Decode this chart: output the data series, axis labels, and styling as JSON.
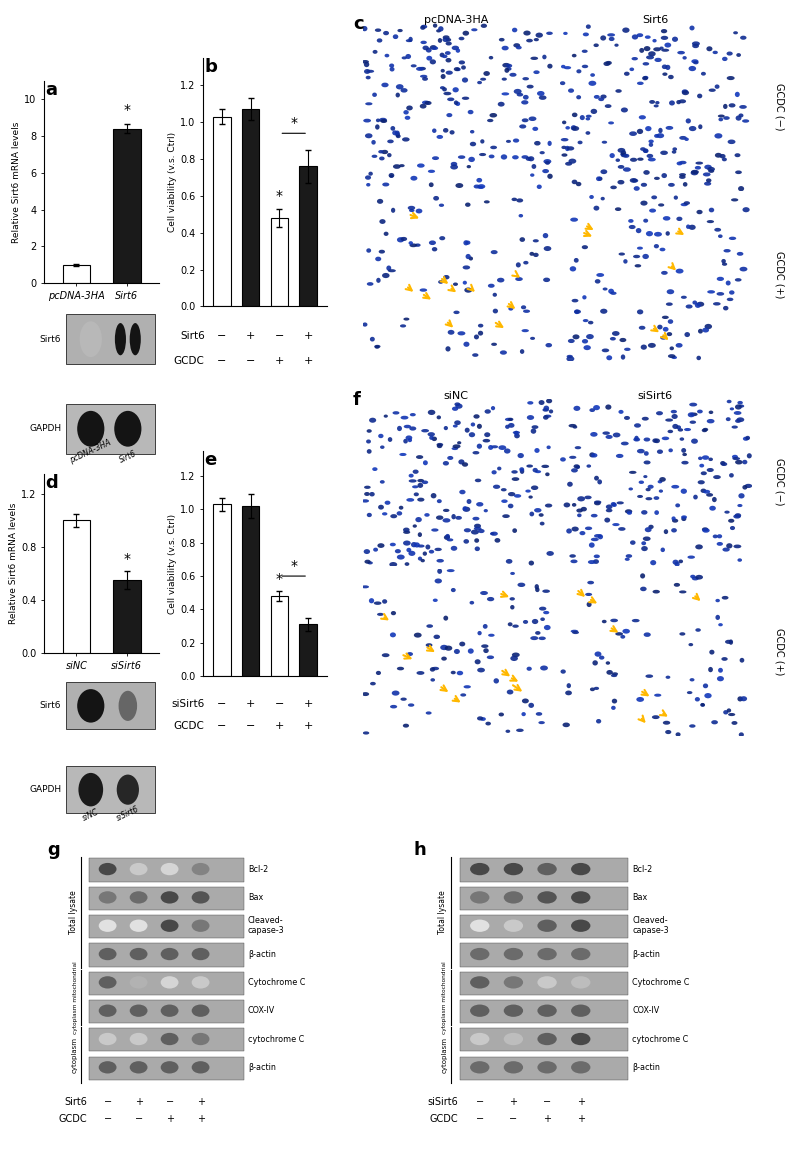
{
  "panel_a": {
    "bar_values": [
      1.0,
      8.4
    ],
    "bar_errors": [
      0.05,
      0.25
    ],
    "bar_colors": [
      "white",
      "#1a1a1a"
    ],
    "bar_edgecolors": [
      "black",
      "black"
    ],
    "categories": [
      "pcDNA-3HA",
      "Sirt6"
    ],
    "ylabel": "Relative Sirt6 mRNA levels",
    "ylim": [
      0,
      11
    ],
    "yticks": [
      0,
      2,
      4,
      6,
      8,
      10
    ],
    "significance": "*",
    "label": "a"
  },
  "panel_b": {
    "bar_values": [
      1.03,
      1.07,
      0.48,
      0.76
    ],
    "bar_errors": [
      0.04,
      0.06,
      0.05,
      0.09
    ],
    "bar_colors": [
      "white",
      "#1a1a1a",
      "white",
      "#1a1a1a"
    ],
    "bar_edgecolors": [
      "black",
      "black",
      "black",
      "black"
    ],
    "ylabel": "Cell viability (v.s. Ctrl)",
    "ylim": [
      0.0,
      1.35
    ],
    "yticks": [
      0.0,
      0.2,
      0.4,
      0.6,
      0.8,
      1.0,
      1.2
    ],
    "xlabel_row1": [
      "−",
      "+",
      "−",
      "+"
    ],
    "xlabel_row2": [
      "−",
      "−",
      "+",
      "+"
    ],
    "xlabel_label1": "Sirt6",
    "xlabel_label2": "GCDC",
    "significance_star_idx": [
      2
    ],
    "significance_bracket": [
      2,
      3
    ],
    "label": "b"
  },
  "panel_d": {
    "bar_values": [
      1.0,
      0.55
    ],
    "bar_errors": [
      0.05,
      0.07
    ],
    "bar_colors": [
      "white",
      "#1a1a1a"
    ],
    "bar_edgecolors": [
      "black",
      "black"
    ],
    "categories": [
      "siNC",
      "siSirt6"
    ],
    "ylabel": "Relative Sirt6 mRNA levels",
    "ylim": [
      0.0,
      1.35
    ],
    "yticks": [
      0.0,
      0.4,
      0.8,
      1.2
    ],
    "significance": "*",
    "label": "d"
  },
  "panel_e": {
    "bar_values": [
      1.03,
      1.02,
      0.48,
      0.31
    ],
    "bar_errors": [
      0.04,
      0.07,
      0.03,
      0.04
    ],
    "bar_colors": [
      "white",
      "#1a1a1a",
      "white",
      "#1a1a1a"
    ],
    "bar_edgecolors": [
      "black",
      "black",
      "black",
      "black"
    ],
    "ylabel": "Cell viability (v.s. Ctrl)",
    "ylim": [
      0.0,
      1.35
    ],
    "yticks": [
      0.0,
      0.2,
      0.4,
      0.6,
      0.8,
      1.0,
      1.2
    ],
    "xlabel_row1": [
      "−",
      "+",
      "−",
      "+"
    ],
    "xlabel_row2": [
      "−",
      "−",
      "+",
      "+"
    ],
    "xlabel_label1": "siSirt6",
    "xlabel_label2": "GCDC",
    "significance_star_idx": [
      2
    ],
    "significance_bracket": [
      2,
      3
    ],
    "label": "e"
  },
  "panel_g": {
    "blot_labels": [
      "Bcl-2",
      "Bax",
      "Cleaved-\ncapase-3",
      "β-actin",
      "Cytochrome C",
      "COX-IV",
      "cytochrome C",
      "β-actin"
    ],
    "xlabel_row1": [
      "−",
      "+",
      "−",
      "+"
    ],
    "xlabel_row2": [
      "−",
      "−",
      "+",
      "+"
    ],
    "xlabel_label1": "Sirt6",
    "xlabel_label2": "GCDC",
    "label": "g"
  },
  "panel_h": {
    "blot_labels": [
      "Bcl-2",
      "Bax",
      "Cleaved-\ncapase-3",
      "β-actin",
      "Cytochrome C",
      "COX-IV",
      "cytochrome C",
      "β-actin"
    ],
    "xlabel_row1": [
      "−",
      "+",
      "−",
      "+"
    ],
    "xlabel_row2": [
      "−",
      "−",
      "+",
      "+"
    ],
    "xlabel_label1": "siSirt6",
    "xlabel_label2": "GCDC",
    "label": "h"
  },
  "background_color": "white",
  "panel_c_title_left": "pcDNA-3HA",
  "panel_c_title_right": "Sirt6",
  "panel_c_row1_label": "GCDC (−)",
  "panel_c_row2_label": "GCDC (+)",
  "panel_f_title_left": "siNC",
  "panel_f_title_right": "siSirt6",
  "panel_f_row1_label": "GCDC (−)",
  "panel_f_row2_label": "GCDC (+)"
}
